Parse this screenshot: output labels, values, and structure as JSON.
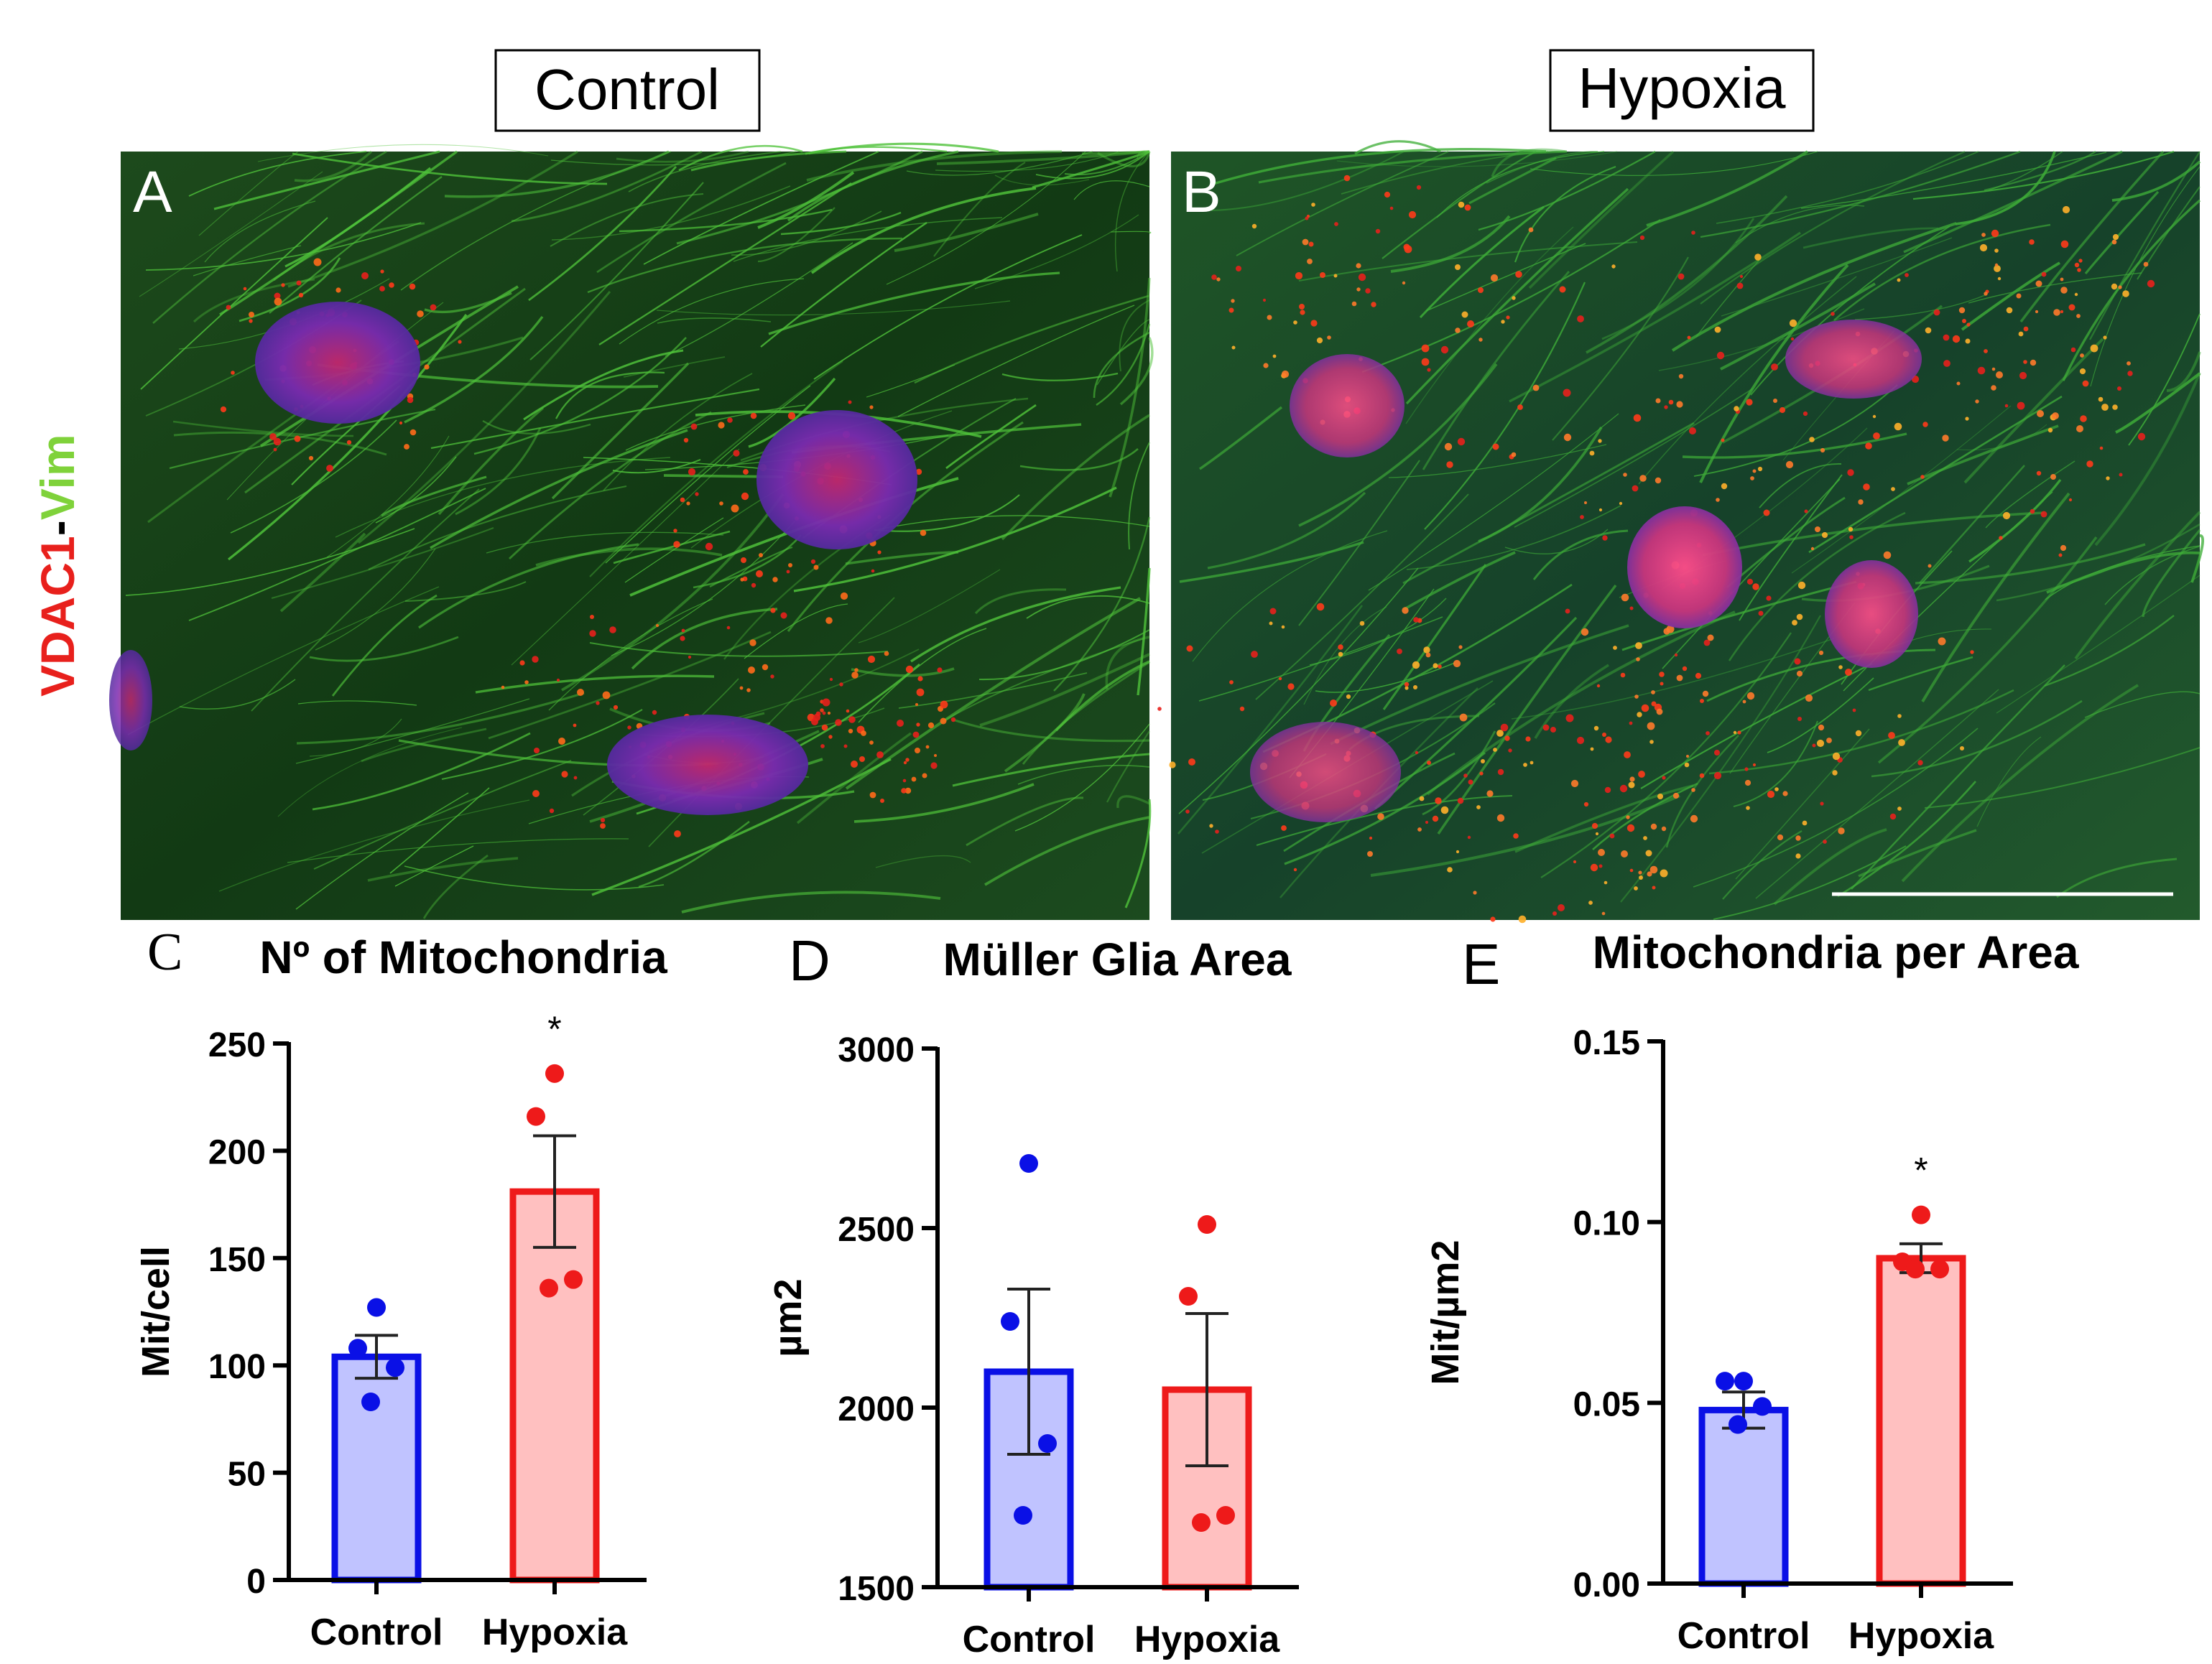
{
  "micrographs": {
    "control_title": "Control",
    "hypoxia_title": "Hypoxia",
    "panel_a_label": "A",
    "panel_b_label": "B",
    "stain_label_red": "VDAC1",
    "stain_label_dash": "-",
    "stain_label_green": "Vim",
    "colors": {
      "red_stain": "#e8201c",
      "green_stain": "#7fd23a"
    }
  },
  "chart_data": [
    {
      "panel": "C",
      "type": "bar",
      "title": "Nº of Mitochondria",
      "ylabel": "Mit/cell",
      "xlabel": "",
      "categories": [
        "Control",
        "Hypoxia"
      ],
      "values": [
        104,
        181
      ],
      "sem": [
        10,
        26
      ],
      "points": [
        [
          127,
          108,
          99,
          83
        ],
        [
          236,
          216,
          140,
          136
        ]
      ],
      "ylim": [
        0,
        250
      ],
      "yticks": [
        0,
        50,
        100,
        150,
        200,
        250
      ],
      "yticklabels": [
        "0",
        "50",
        "100",
        "150",
        "200",
        "250"
      ],
      "significance": [
        "",
        "*"
      ],
      "colors": {
        "edge": [
          "#0a10e6",
          "#ee1a1a"
        ],
        "fill": [
          "#c0c3ff",
          "#ffc0c0"
        ]
      }
    },
    {
      "panel": "D",
      "type": "bar",
      "title": "Müller Glia Area",
      "ylabel": "µm2",
      "xlabel": "",
      "categories": [
        "Control",
        "Hypoxia"
      ],
      "values": [
        2100,
        2050
      ],
      "sem": [
        230,
        212
      ],
      "points": [
        [
          2680,
          2240,
          1900,
          1700
        ],
        [
          2510,
          2310,
          1700,
          1680
        ]
      ],
      "ylim": [
        1500,
        3000
      ],
      "yticks": [
        1500,
        2000,
        2500,
        3000
      ],
      "yticklabels": [
        "1500",
        "2000",
        "2500",
        "3000"
      ],
      "significance": [
        "",
        ""
      ],
      "colors": {
        "edge": [
          "#0a10e6",
          "#ee1a1a"
        ],
        "fill": [
          "#c0c3ff",
          "#ffc0c0"
        ]
      }
    },
    {
      "panel": "E",
      "type": "bar",
      "title": "Mitochondria per Area",
      "ylabel": "Mit/µm2",
      "xlabel": "",
      "categories": [
        "Control",
        "Hypoxia"
      ],
      "values": [
        0.048,
        0.09
      ],
      "sem": [
        0.005,
        0.004
      ],
      "points": [
        [
          0.056,
          0.056,
          0.049,
          0.044
        ],
        [
          0.102,
          0.089,
          0.087,
          0.087
        ]
      ],
      "ylim": [
        0,
        0.15
      ],
      "yticks": [
        0,
        0.05,
        0.1,
        0.15
      ],
      "yticklabels": [
        "0.00",
        "0.05",
        "0.10",
        "0.15"
      ],
      "significance": [
        "",
        "*"
      ],
      "colors": {
        "edge": [
          "#0a10e6",
          "#ee1a1a"
        ],
        "fill": [
          "#c0c3ff",
          "#ffc0c0"
        ]
      }
    }
  ]
}
